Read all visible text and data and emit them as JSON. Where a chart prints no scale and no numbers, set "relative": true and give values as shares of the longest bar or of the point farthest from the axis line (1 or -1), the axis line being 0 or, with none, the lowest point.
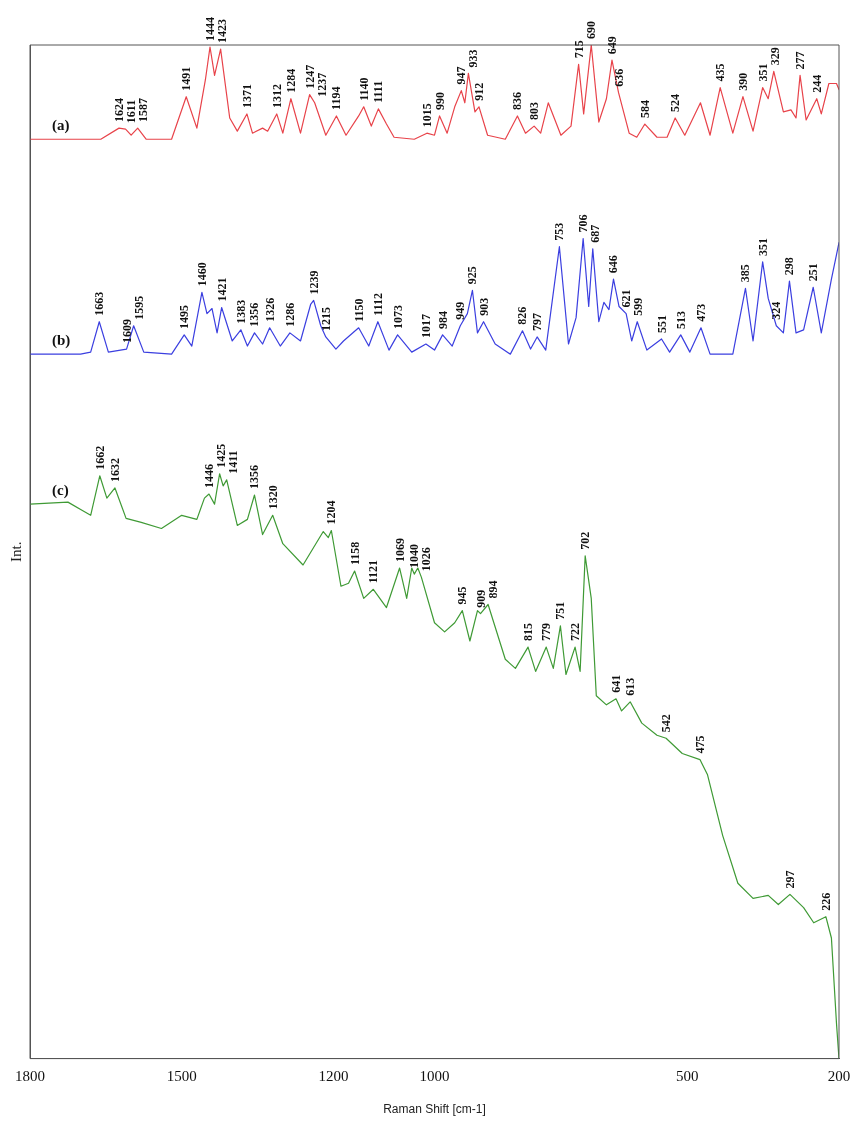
{
  "chart_data": {
    "type": "line",
    "relative": true,
    "xlabel": "Raman Shift [cm-1]",
    "ylabel": "Int.",
    "xlim": [
      1800,
      200
    ],
    "xticks": [
      1800,
      1500,
      1200,
      1000,
      500,
      200
    ],
    "grid": false,
    "legend": false,
    "marker": "none",
    "line_style": "solid",
    "series": [
      {
        "name": "(a)",
        "color": "#e8434a",
        "x": [
          1800,
          1660,
          1624,
          1611,
          1600,
          1587,
          1570,
          1520,
          1491,
          1470,
          1453,
          1444,
          1435,
          1423,
          1405,
          1390,
          1371,
          1360,
          1340,
          1330,
          1312,
          1300,
          1284,
          1265,
          1247,
          1237,
          1215,
          1194,
          1175,
          1150,
          1140,
          1125,
          1111,
          1095,
          1080,
          1040,
          1015,
          1000,
          990,
          975,
          960,
          947,
          940,
          933,
          920,
          912,
          895,
          860,
          836,
          820,
          803,
          790,
          775,
          750,
          730,
          715,
          705,
          690,
          675,
          660,
          649,
          636,
          615,
          600,
          584,
          560,
          540,
          524,
          505,
          474,
          455,
          435,
          410,
          390,
          370,
          351,
          340,
          329,
          310,
          295,
          285,
          277,
          265,
          244,
          235,
          220,
          205,
          200
        ],
        "values": [
          0.907,
          0.907,
          0.918,
          0.917,
          0.911,
          0.918,
          0.907,
          0.907,
          0.949,
          0.918,
          0.966,
          0.998,
          0.97,
          0.996,
          0.928,
          0.915,
          0.932,
          0.913,
          0.918,
          0.915,
          0.932,
          0.913,
          0.947,
          0.913,
          0.951,
          0.943,
          0.911,
          0.93,
          0.911,
          0.93,
          0.939,
          0.92,
          0.937,
          0.922,
          0.909,
          0.907,
          0.913,
          0.911,
          0.93,
          0.913,
          0.939,
          0.955,
          0.943,
          0.972,
          0.934,
          0.939,
          0.911,
          0.907,
          0.93,
          0.913,
          0.92,
          0.913,
          0.943,
          0.911,
          0.92,
          0.981,
          0.932,
          1.0,
          0.924,
          0.947,
          0.985,
          0.953,
          0.913,
          0.909,
          0.922,
          0.909,
          0.909,
          0.928,
          0.911,
          0.943,
          0.911,
          0.958,
          0.913,
          0.949,
          0.915,
          0.958,
          0.947,
          0.974,
          0.934,
          0.936,
          0.928,
          0.97,
          0.926,
          0.947,
          0.932,
          0.962,
          0.962,
          0.956
        ]
      },
      {
        "name": "(b)",
        "color": "#3b3fe0",
        "x": [
          1800,
          1700,
          1680,
          1663,
          1645,
          1609,
          1595,
          1575,
          1520,
          1495,
          1480,
          1460,
          1450,
          1440,
          1430,
          1421,
          1400,
          1383,
          1370,
          1356,
          1340,
          1326,
          1305,
          1286,
          1265,
          1245,
          1239,
          1225,
          1215,
          1195,
          1180,
          1150,
          1130,
          1112,
          1090,
          1073,
          1045,
          1017,
          1000,
          984,
          965,
          949,
          935,
          925,
          915,
          903,
          880,
          850,
          826,
          810,
          797,
          780,
          753,
          735,
          720,
          706,
          695,
          687,
          675,
          665,
          655,
          646,
          635,
          621,
          610,
          599,
          580,
          551,
          535,
          513,
          495,
          473,
          455,
          410,
          385,
          370,
          351,
          340,
          324,
          310,
          298,
          285,
          270,
          251,
          235,
          215,
          200
        ],
        "values": [
          0.695,
          0.695,
          0.697,
          0.727,
          0.697,
          0.7,
          0.723,
          0.697,
          0.695,
          0.714,
          0.703,
          0.756,
          0.735,
          0.74,
          0.716,
          0.741,
          0.708,
          0.719,
          0.703,
          0.716,
          0.705,
          0.721,
          0.703,
          0.716,
          0.708,
          0.744,
          0.748,
          0.723,
          0.712,
          0.7,
          0.708,
          0.721,
          0.703,
          0.727,
          0.699,
          0.714,
          0.697,
          0.705,
          0.699,
          0.714,
          0.703,
          0.723,
          0.735,
          0.758,
          0.716,
          0.727,
          0.705,
          0.695,
          0.718,
          0.7,
          0.712,
          0.699,
          0.801,
          0.705,
          0.731,
          0.809,
          0.742,
          0.799,
          0.727,
          0.746,
          0.739,
          0.769,
          0.742,
          0.735,
          0.708,
          0.727,
          0.699,
          0.71,
          0.697,
          0.714,
          0.697,
          0.721,
          0.695,
          0.695,
          0.76,
          0.708,
          0.786,
          0.75,
          0.723,
          0.716,
          0.767,
          0.716,
          0.719,
          0.761,
          0.716,
          0.769,
          0.805
        ]
      },
      {
        "name": "(c)",
        "color": "#3f9a35",
        "x": [
          1800,
          1725,
          1680,
          1662,
          1648,
          1632,
          1610,
          1580,
          1540,
          1500,
          1470,
          1455,
          1446,
          1435,
          1425,
          1418,
          1411,
          1390,
          1370,
          1356,
          1340,
          1320,
          1300,
          1260,
          1220,
          1210,
          1204,
          1185,
          1170,
          1158,
          1140,
          1121,
          1095,
          1069,
          1055,
          1045,
          1040,
          1033,
          1026,
          1000,
          980,
          960,
          945,
          930,
          915,
          909,
          894,
          860,
          840,
          815,
          800,
          779,
          765,
          751,
          740,
          722,
          712,
          702,
          690,
          680,
          660,
          641,
          630,
          613,
          590,
          560,
          542,
          510,
          475,
          460,
          430,
          400,
          370,
          340,
          320,
          297,
          270,
          250,
          226,
          215,
          205,
          200
        ],
        "values": [
          0.547,
          0.549,
          0.536,
          0.575,
          0.553,
          0.563,
          0.533,
          0.529,
          0.523,
          0.536,
          0.532,
          0.553,
          0.557,
          0.547,
          0.577,
          0.565,
          0.571,
          0.526,
          0.532,
          0.556,
          0.517,
          0.536,
          0.508,
          0.487,
          0.52,
          0.514,
          0.521,
          0.466,
          0.469,
          0.481,
          0.454,
          0.463,
          0.445,
          0.484,
          0.454,
          0.484,
          0.478,
          0.484,
          0.475,
          0.43,
          0.421,
          0.43,
          0.442,
          0.412,
          0.442,
          0.439,
          0.448,
          0.394,
          0.385,
          0.406,
          0.382,
          0.406,
          0.385,
          0.427,
          0.379,
          0.406,
          0.382,
          0.496,
          0.454,
          0.358,
          0.349,
          0.355,
          0.343,
          0.352,
          0.331,
          0.319,
          0.316,
          0.301,
          0.295,
          0.28,
          0.22,
          0.173,
          0.158,
          0.161,
          0.152,
          0.162,
          0.149,
          0.134,
          0.14,
          0.119,
          0.035,
          0
        ]
      }
    ],
    "annotations": [
      {
        "text": "1624",
        "x": 1624,
        "y": 0.918
      },
      {
        "text": "1611",
        "x": 1611,
        "y": 0.917
      },
      {
        "text": "1587",
        "x": 1587,
        "y": 0.918
      },
      {
        "text": "1491",
        "x": 1491,
        "y": 0.949
      },
      {
        "text": "1444",
        "x": 1444,
        "y": 0.998
      },
      {
        "text": "1423",
        "x": 1423,
        "y": 0.996
      },
      {
        "text": "1371",
        "x": 1371,
        "y": 0.932
      },
      {
        "text": "1312",
        "x": 1312,
        "y": 0.932
      },
      {
        "text": "1284",
        "x": 1284,
        "y": 0.947
      },
      {
        "text": "1247",
        "x": 1247,
        "y": 0.951
      },
      {
        "text": "1237",
        "x": 1237,
        "y": 0.943
      },
      {
        "text": "1194",
        "x": 1194,
        "y": 0.93
      },
      {
        "text": "1140",
        "x": 1140,
        "y": 0.939
      },
      {
        "text": "1111",
        "x": 1111,
        "y": 0.937
      },
      {
        "text": "1015",
        "x": 1015,
        "y": 0.913
      },
      {
        "text": "990",
        "x": 990,
        "y": 0.93
      },
      {
        "text": "947",
        "x": 947,
        "y": 0.955
      },
      {
        "text": "933",
        "x": 933,
        "y": 0.972
      },
      {
        "text": "912",
        "x": 912,
        "y": 0.939
      },
      {
        "text": "836",
        "x": 836,
        "y": 0.93
      },
      {
        "text": "803",
        "x": 803,
        "y": 0.92
      },
      {
        "text": "715",
        "x": 715,
        "y": 0.981
      },
      {
        "text": "690",
        "x": 690,
        "y": 1.0
      },
      {
        "text": "649",
        "x": 649,
        "y": 0.985
      },
      {
        "text": "636",
        "x": 636,
        "y": 0.953
      },
      {
        "text": "584",
        "x": 584,
        "y": 0.922
      },
      {
        "text": "524",
        "x": 524,
        "y": 0.928
      },
      {
        "text": "435",
        "x": 435,
        "y": 0.958
      },
      {
        "text": "390",
        "x": 390,
        "y": 0.949
      },
      {
        "text": "351",
        "x": 351,
        "y": 0.958
      },
      {
        "text": "329",
        "x": 329,
        "y": 0.974
      },
      {
        "text": "277",
        "x": 277,
        "y": 0.97
      },
      {
        "text": "244",
        "x": 244,
        "y": 0.947
      },
      {
        "text": "1663",
        "x": 1663,
        "y": 0.727
      },
      {
        "text": "1609",
        "x": 1609,
        "y": 0.7
      },
      {
        "text": "1595",
        "x": 1595,
        "y": 0.723
      },
      {
        "text": "1495",
        "x": 1495,
        "y": 0.714
      },
      {
        "text": "1460",
        "x": 1460,
        "y": 0.756
      },
      {
        "text": "1421",
        "x": 1421,
        "y": 0.741
      },
      {
        "text": "1383",
        "x": 1383,
        "y": 0.719
      },
      {
        "text": "1356",
        "x": 1356,
        "y": 0.716
      },
      {
        "text": "1326",
        "x": 1326,
        "y": 0.721
      },
      {
        "text": "1286",
        "x": 1286,
        "y": 0.716
      },
      {
        "text": "1239",
        "x": 1239,
        "y": 0.748
      },
      {
        "text": "1215",
        "x": 1215,
        "y": 0.712
      },
      {
        "text": "1150",
        "x": 1150,
        "y": 0.721
      },
      {
        "text": "1112",
        "x": 1112,
        "y": 0.727
      },
      {
        "text": "1073",
        "x": 1073,
        "y": 0.714
      },
      {
        "text": "1017",
        "x": 1017,
        "y": 0.705
      },
      {
        "text": "984",
        "x": 984,
        "y": 0.714
      },
      {
        "text": "949",
        "x": 949,
        "y": 0.723
      },
      {
        "text": "925",
        "x": 925,
        "y": 0.758
      },
      {
        "text": "903",
        "x": 903,
        "y": 0.727
      },
      {
        "text": "826",
        "x": 826,
        "y": 0.718
      },
      {
        "text": "797",
        "x": 797,
        "y": 0.712
      },
      {
        "text": "753",
        "x": 753,
        "y": 0.801
      },
      {
        "text": "706",
        "x": 706,
        "y": 0.809
      },
      {
        "text": "687",
        "x": 687,
        "y": 0.799
      },
      {
        "text": "646",
        "x": 646,
        "y": 0.769
      },
      {
        "text": "621",
        "x": 621,
        "y": 0.735
      },
      {
        "text": "599",
        "x": 599,
        "y": 0.727
      },
      {
        "text": "551",
        "x": 551,
        "y": 0.71
      },
      {
        "text": "513",
        "x": 513,
        "y": 0.714
      },
      {
        "text": "473",
        "x": 473,
        "y": 0.721
      },
      {
        "text": "385",
        "x": 385,
        "y": 0.76
      },
      {
        "text": "351",
        "x": 351,
        "y": 0.786
      },
      {
        "text": "324",
        "x": 324,
        "y": 0.723
      },
      {
        "text": "298",
        "x": 298,
        "y": 0.767
      },
      {
        "text": "251",
        "x": 251,
        "y": 0.761
      },
      {
        "text": "1662",
        "x": 1662,
        "y": 0.575
      },
      {
        "text": "1632",
        "x": 1632,
        "y": 0.563
      },
      {
        "text": "1446",
        "x": 1446,
        "y": 0.557
      },
      {
        "text": "1425",
        "x": 1425,
        "y": 0.577
      },
      {
        "text": "1411",
        "x": 1411,
        "y": 0.571
      },
      {
        "text": "1356",
        "x": 1356,
        "y": 0.556
      },
      {
        "text": "1320",
        "x": 1320,
        "y": 0.536
      },
      {
        "text": "1204",
        "x": 1204,
        "y": 0.521
      },
      {
        "text": "1158",
        "x": 1158,
        "y": 0.481
      },
      {
        "text": "1121",
        "x": 1121,
        "y": 0.463
      },
      {
        "text": "1069",
        "x": 1069,
        "y": 0.484
      },
      {
        "text": "1040",
        "x": 1040,
        "y": 0.478
      },
      {
        "text": "1026",
        "x": 1026,
        "y": 0.475
      },
      {
        "text": "945",
        "x": 945,
        "y": 0.442
      },
      {
        "text": "909",
        "x": 909,
        "y": 0.439
      },
      {
        "text": "894",
        "x": 894,
        "y": 0.448
      },
      {
        "text": "815",
        "x": 815,
        "y": 0.406
      },
      {
        "text": "779",
        "x": 779,
        "y": 0.406
      },
      {
        "text": "751",
        "x": 751,
        "y": 0.427
      },
      {
        "text": "722",
        "x": 722,
        "y": 0.406
      },
      {
        "text": "702",
        "x": 702,
        "y": 0.496
      },
      {
        "text": "641",
        "x": 641,
        "y": 0.355
      },
      {
        "text": "613",
        "x": 613,
        "y": 0.352
      },
      {
        "text": "542",
        "x": 542,
        "y": 0.316
      },
      {
        "text": "475",
        "x": 475,
        "y": 0.295
      },
      {
        "text": "297",
        "x": 297,
        "y": 0.162
      },
      {
        "text": "226",
        "x": 226,
        "y": 0.14
      }
    ]
  }
}
